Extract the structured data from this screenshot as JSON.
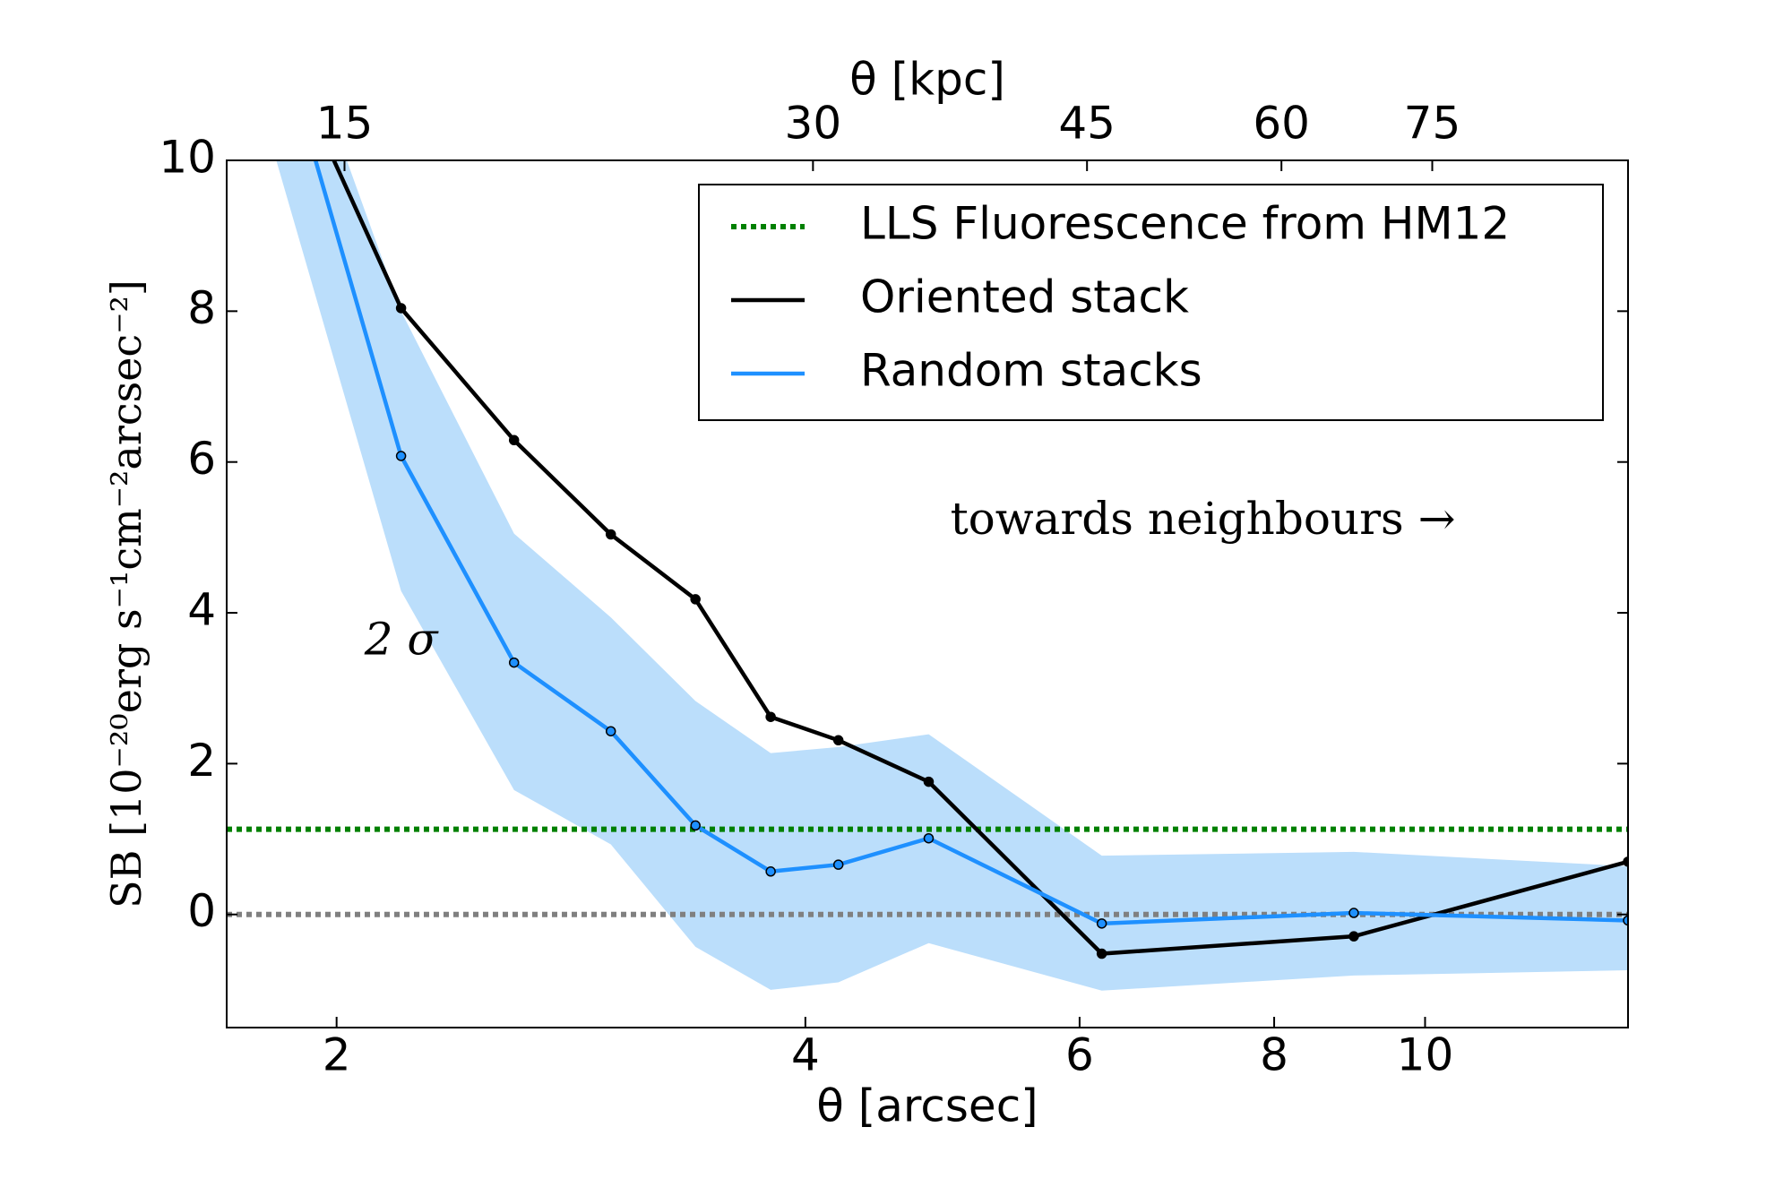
{
  "chart_data": {
    "type": "line",
    "xlabel": "θ [arcsec]",
    "x2label": "θ [kpc]",
    "ylabel": "SB [10⁻²⁰erg s⁻¹cm⁻²arcsec⁻²]",
    "xscale": "log",
    "xlim": [
      1.7,
      13.5
    ],
    "xticks": [
      2,
      4,
      6,
      8,
      10
    ],
    "x2lim": [
      12.6,
      100.2
    ],
    "x2ticks": [
      15,
      30,
      45,
      60,
      75
    ],
    "ylim": [
      -1.5,
      10
    ],
    "yticks": [
      0,
      2,
      4,
      6,
      8,
      10
    ],
    "legend": "upper right",
    "x": [
      1.8,
      2.2,
      2.6,
      3.0,
      3.4,
      3.8,
      4.2,
      4.8,
      6.2,
      9.0,
      13.5
    ],
    "band": {
      "color": "#bbdefb",
      "upper": [
        13,
        8.0,
        5.05,
        3.94,
        2.83,
        2.14,
        2.22,
        2.39,
        0.78,
        0.83,
        0.64
      ],
      "lower": [
        10.5,
        4.29,
        1.65,
        0.93,
        -0.43,
        -1.0,
        -0.9,
        -0.38,
        -1.01,
        -0.81,
        -0.74
      ]
    },
    "hlines": [
      {
        "name": "LLS Fluorescence from HM12",
        "color": "#008000",
        "value": 1.13
      },
      {
        "color": "#808080",
        "value": 0
      }
    ],
    "series": [
      {
        "name": "Oriented stack",
        "color": "#000000",
        "values": [
          12,
          8.04,
          6.29,
          5.04,
          4.18,
          2.62,
          2.31,
          1.76,
          -0.52,
          -0.29,
          0.7
        ]
      },
      {
        "name": "Random stacks",
        "color": "#1e90ff",
        "values": [
          12.3,
          6.08,
          3.34,
          2.43,
          1.18,
          0.57,
          0.66,
          1.01,
          -0.12,
          0.02,
          -0.08
        ]
      }
    ],
    "annotations": [
      {
        "text": "towards  neighbours →",
        "x": 7.2,
        "y": 5.2,
        "color": "#000000"
      },
      {
        "text": "2 σ",
        "x": 2.2,
        "y": 3.6,
        "color": "#1e90ff"
      }
    ]
  }
}
